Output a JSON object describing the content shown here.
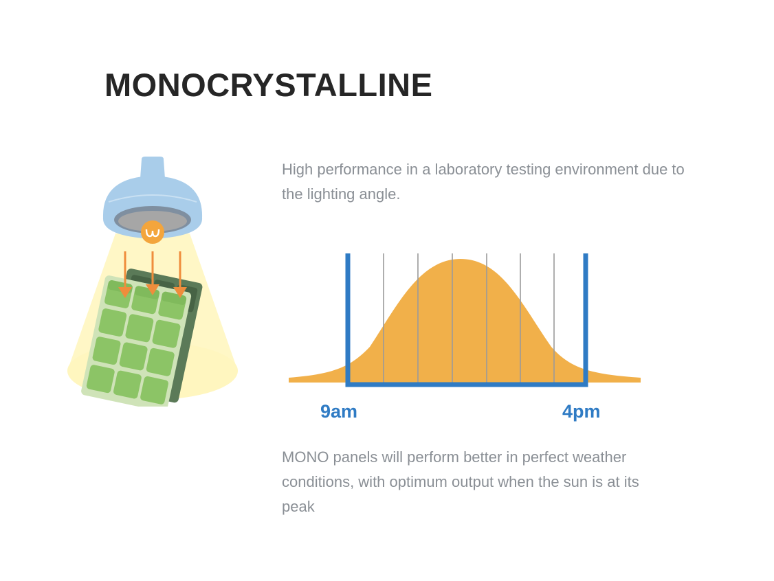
{
  "page": {
    "title": "MONOCRYSTALLINE",
    "description": "High performance in a laboratory testing environment due to the lighting angle.",
    "note": "MONO panels will perform better in perfect weather conditions, with optimum output when the sun is at its peak"
  },
  "diagram": {
    "start_label": "9am",
    "end_label": "4pm",
    "curve_color": "#f1b04a",
    "window_color": "#2f7bc4",
    "lamp_color": "#a9cdea",
    "beam_color": "#fff7c6",
    "arrow_color": "#ef8d3c",
    "panel_color": "#8cc466",
    "panel_back_color": "#5b7a58"
  }
}
